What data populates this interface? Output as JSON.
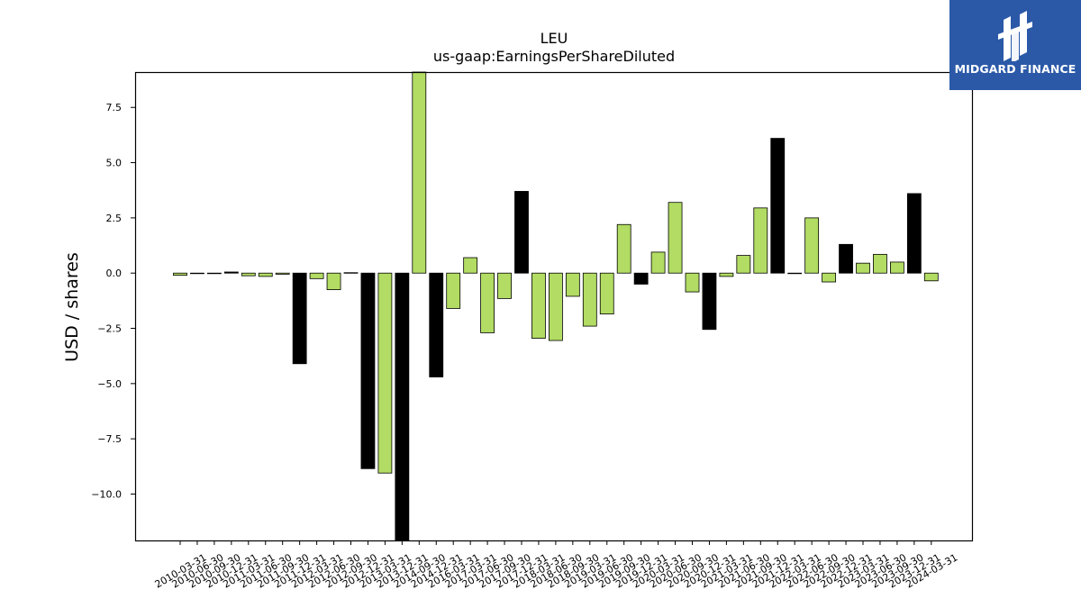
{
  "chart_data": {
    "type": "bar",
    "title": "LEU",
    "subtitle": "us-gaap:EarningsPerShareDiluted",
    "xlabel": "",
    "ylabel": "USD / shares",
    "ylim": [
      -12.1,
      9.1
    ],
    "yticks": [
      7.5,
      5.0,
      2.5,
      0.0,
      -2.5,
      -5.0,
      -7.5,
      -10.0
    ],
    "ytick_labels": [
      "7.5",
      "5.0",
      "2.5",
      "0.0",
      "−2.5",
      "−5.0",
      "−7.5",
      "−10.0"
    ],
    "colors": {
      "quarter": "#b2dc63",
      "annual": "#000000",
      "edge": "#000000"
    },
    "grid": false,
    "categories": [
      "2010-03-31",
      "2010-06-30",
      "2010-09-30",
      "2010-12-31",
      "2011-03-31",
      "2011-06-30",
      "2011-09-30",
      "2011-12-31",
      "2012-03-31",
      "2012-06-30",
      "2012-09-30",
      "2012-12-31",
      "2013-03-31",
      "2013-12-31",
      "2014-09-30",
      "2014-12-31",
      "2016-03-31",
      "2017-03-31",
      "2017-06-30",
      "2017-09-30",
      "2017-12-31",
      "2018-03-31",
      "2018-06-30",
      "2018-09-30",
      "2019-03-31",
      "2019-06-30",
      "2019-09-30",
      "2019-12-31",
      "2020-03-31",
      "2020-06-30",
      "2020-09-30",
      "2020-12-31",
      "2021-03-31",
      "2021-06-30",
      "2021-09-30",
      "2021-12-31",
      "2022-03-31",
      "2022-06-30",
      "2022-09-30",
      "2022-12-31",
      "2023-03-31",
      "2023-06-30",
      "2023-09-30",
      "2023-12-31",
      "2024-03-31"
    ],
    "values": [
      -0.1,
      0.0,
      0.0,
      0.05,
      -0.12,
      -0.15,
      -0.05,
      -4.1,
      -0.25,
      -0.75,
      0.02,
      -8.85,
      -9.05,
      -12.1,
      9.1,
      -4.7,
      -1.6,
      0.7,
      -2.7,
      -1.15,
      3.7,
      -2.95,
      -3.05,
      -1.05,
      -2.4,
      -1.85,
      2.2,
      -0.5,
      0.95,
      3.2,
      -0.85,
      -2.55,
      -0.15,
      0.8,
      2.95,
      6.1,
      0.0,
      2.5,
      -0.4,
      1.3,
      0.45,
      0.85,
      0.5,
      3.6,
      -0.35
    ],
    "bar_type": [
      "q",
      "q",
      "q",
      "a",
      "q",
      "q",
      "q",
      "a",
      "q",
      "q",
      "q",
      "a",
      "q",
      "a",
      "q",
      "a",
      "q",
      "q",
      "q",
      "q",
      "a",
      "q",
      "q",
      "q",
      "q",
      "q",
      "q",
      "a",
      "q",
      "q",
      "q",
      "a",
      "q",
      "q",
      "q",
      "a",
      "q",
      "q",
      "q",
      "a",
      "q",
      "q",
      "q",
      "a",
      "q"
    ]
  },
  "logo": {
    "text": "MIDGARD FINANCE",
    "icon": "midgard-logo-icon"
  }
}
